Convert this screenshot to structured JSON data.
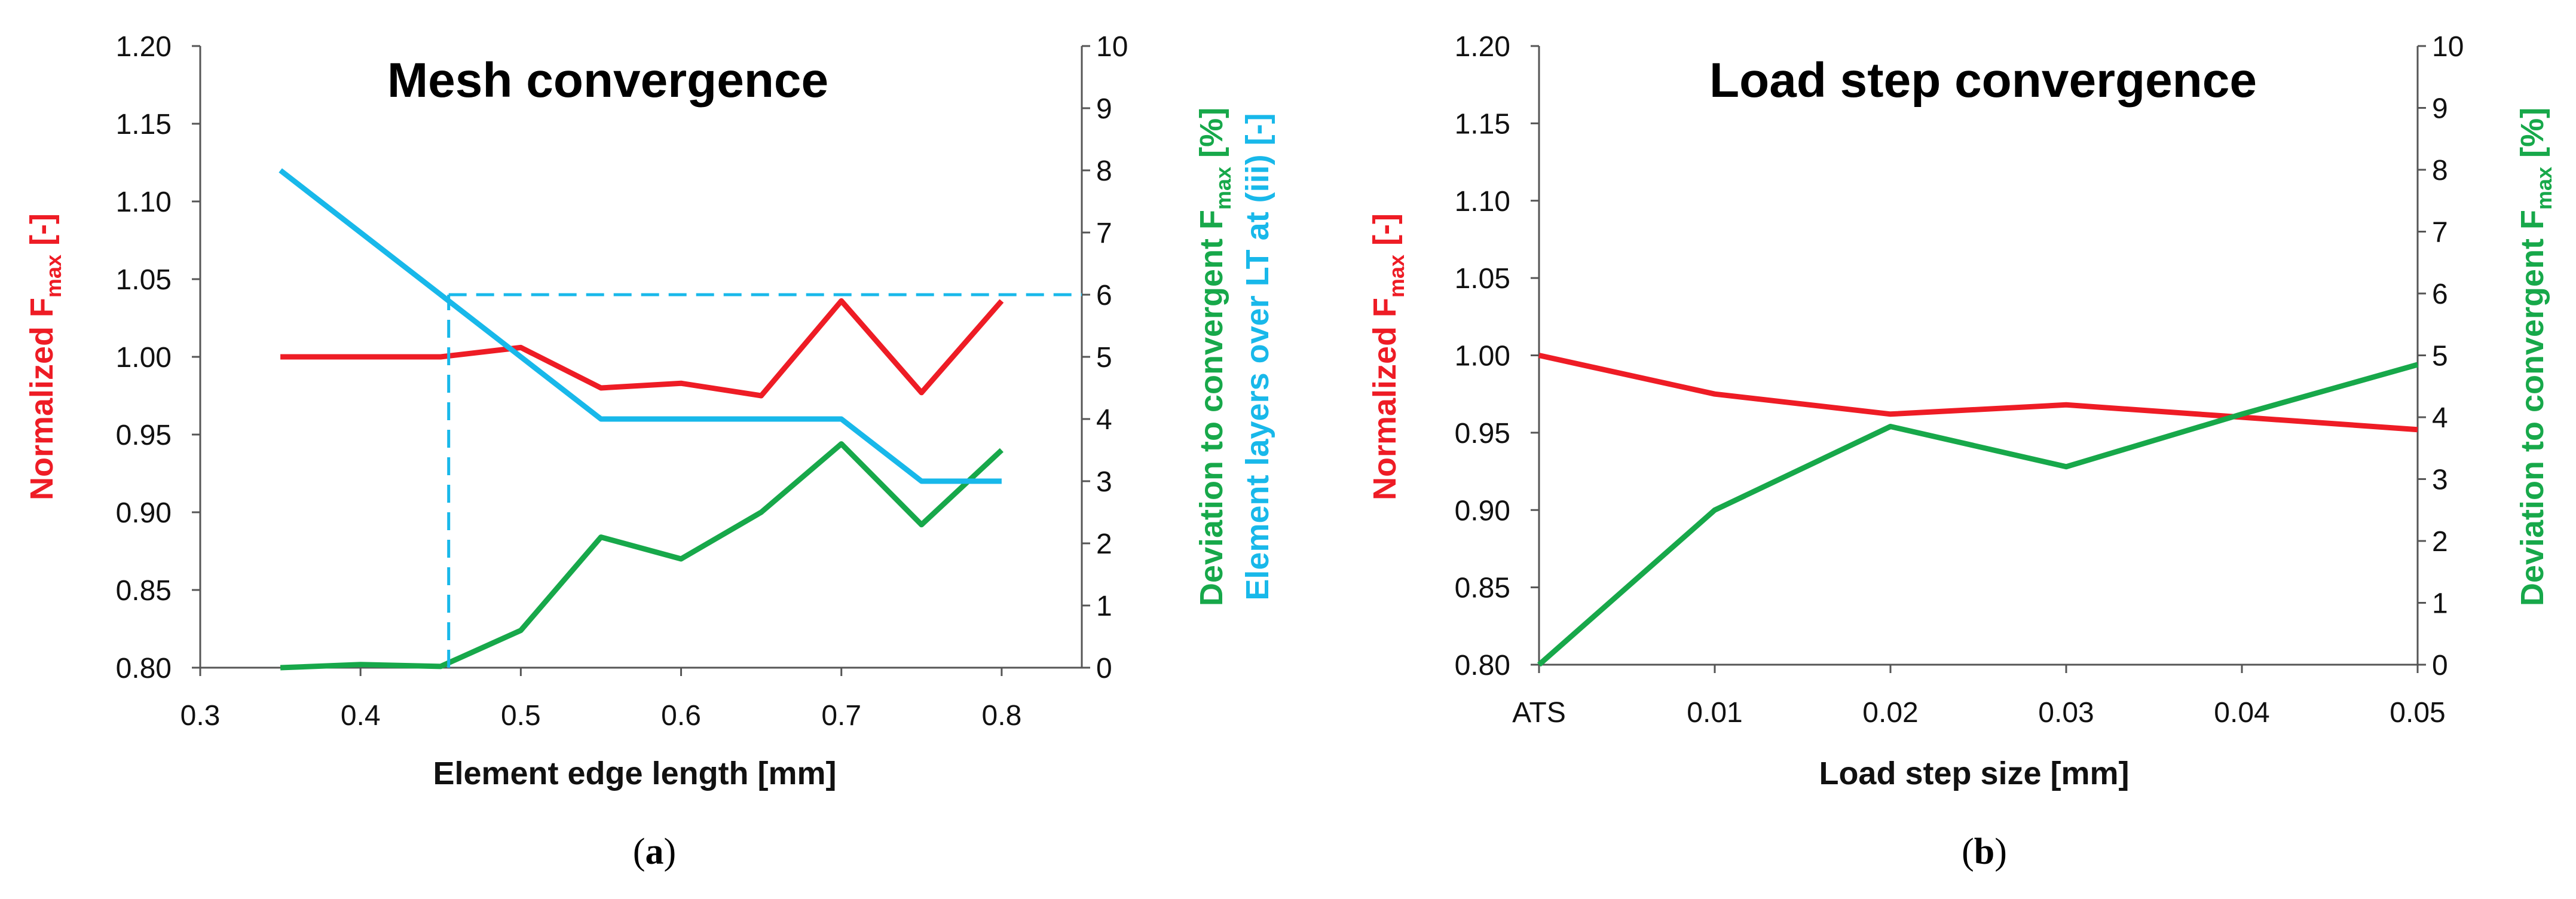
{
  "colors": {
    "red": "#ee1c25",
    "green": "#17a84a",
    "blue": "#18b8ea",
    "axis": "#555555",
    "text": "#111111"
  },
  "chart_data": [
    {
      "panel": "a",
      "type": "line",
      "title": "Mesh convergence",
      "xlabel": "Element edge length [mm]",
      "ylabel_left": {
        "pre": "Normalized F",
        "sub": "max",
        "post": " [-]"
      },
      "ylabel_right_1": {
        "pre": "Deviation to convergent F",
        "sub": "max",
        "post": " [%]"
      },
      "ylabel_right_2": "Element layers over LT at (iii) [-]",
      "caption": {
        "open": "(",
        "letter": "a",
        "close": ")"
      },
      "xlim": [
        0.3,
        0.85
      ],
      "xticks": [
        0.3,
        0.4,
        0.5,
        0.6,
        0.7,
        0.8
      ],
      "xtick_labels": [
        "0.3",
        "0.4",
        "0.5",
        "0.6",
        "0.7",
        "0.8"
      ],
      "ylim_left": [
        0.8,
        1.2
      ],
      "yticks_left": [
        "0.80",
        "0.85",
        "0.90",
        "0.95",
        "1.00",
        "1.05",
        "1.10",
        "1.15",
        "1.20"
      ],
      "ylim_right": [
        0,
        10
      ],
      "yticks_right": [
        "0",
        "1",
        "2",
        "3",
        "4",
        "5",
        "6",
        "7",
        "8",
        "9",
        "10"
      ],
      "series": [
        {
          "name": "Normalized Fmax",
          "axis": "left",
          "color": "red",
          "dashed": false,
          "x": [
            0.35,
            0.4,
            0.45,
            0.5,
            0.55,
            0.6,
            0.65,
            0.7,
            0.75,
            0.8
          ],
          "y": [
            1.0,
            1.0,
            1.0,
            1.006,
            0.98,
            0.983,
            0.975,
            1.036,
            0.977,
            1.036
          ]
        },
        {
          "name": "Deviation to convergent Fmax",
          "axis": "right",
          "color": "green",
          "dashed": false,
          "x": [
            0.35,
            0.4,
            0.45,
            0.5,
            0.55,
            0.6,
            0.65,
            0.7,
            0.75,
            0.8
          ],
          "y": [
            0,
            0.05,
            0.02,
            0.6,
            2.1,
            1.75,
            2.5,
            3.6,
            2.3,
            3.5
          ]
        },
        {
          "name": "Element layers over LT at (iii)",
          "axis": "right",
          "color": "blue",
          "dashed": false,
          "x": [
            0.35,
            0.45,
            0.5,
            0.55,
            0.6,
            0.65,
            0.7,
            0.75,
            0.8
          ],
          "y": [
            8,
            6,
            5,
            4,
            4,
            4,
            4,
            3,
            3
          ]
        },
        {
          "name": "guide-vertical",
          "axis": "right",
          "color": "blue",
          "dashed": true,
          "x": [
            0.455,
            0.455
          ],
          "y": [
            0,
            6
          ]
        },
        {
          "name": "guide-horizontal",
          "axis": "right",
          "color": "blue",
          "dashed": true,
          "x": [
            0.455,
            0.85
          ],
          "y": [
            6,
            6
          ]
        }
      ]
    },
    {
      "panel": "b",
      "type": "line",
      "title": "Load step convergence",
      "xlabel": "Load step size [mm]",
      "ylabel_left": {
        "pre": "Normalized F",
        "sub": "max",
        "post": " [-]"
      },
      "ylabel_right_1": {
        "pre": "Deviation to convergent F",
        "sub": "max",
        "post": " [%]"
      },
      "caption": {
        "open": "(",
        "letter": "b",
        "close": ")"
      },
      "xlim": [
        0,
        0.05
      ],
      "xticks": [
        0,
        0.01,
        0.02,
        0.03,
        0.04,
        0.05
      ],
      "xtick_labels": [
        "ATS",
        "0.01",
        "0.02",
        "0.03",
        "0.04",
        "0.05"
      ],
      "ylim_left": [
        0.8,
        1.2
      ],
      "yticks_left": [
        "0.80",
        "0.85",
        "0.90",
        "0.95",
        "1.00",
        "1.05",
        "1.10",
        "1.15",
        "1.20"
      ],
      "ylim_right": [
        0,
        10
      ],
      "yticks_right": [
        "0",
        "1",
        "2",
        "3",
        "4",
        "5",
        "6",
        "7",
        "8",
        "9",
        "10"
      ],
      "series": [
        {
          "name": "Normalized Fmax",
          "axis": "left",
          "color": "red",
          "dashed": false,
          "x": [
            0,
            0.01,
            0.02,
            0.03,
            0.04,
            0.05
          ],
          "y": [
            1.0,
            0.975,
            0.962,
            0.968,
            0.96,
            0.952
          ]
        },
        {
          "name": "Deviation to convergent Fmax",
          "axis": "right",
          "color": "green",
          "dashed": false,
          "x": [
            0,
            0.01,
            0.02,
            0.03,
            0.04,
            0.05
          ],
          "y": [
            0,
            2.5,
            3.85,
            3.2,
            4.05,
            4.85
          ]
        }
      ]
    }
  ]
}
